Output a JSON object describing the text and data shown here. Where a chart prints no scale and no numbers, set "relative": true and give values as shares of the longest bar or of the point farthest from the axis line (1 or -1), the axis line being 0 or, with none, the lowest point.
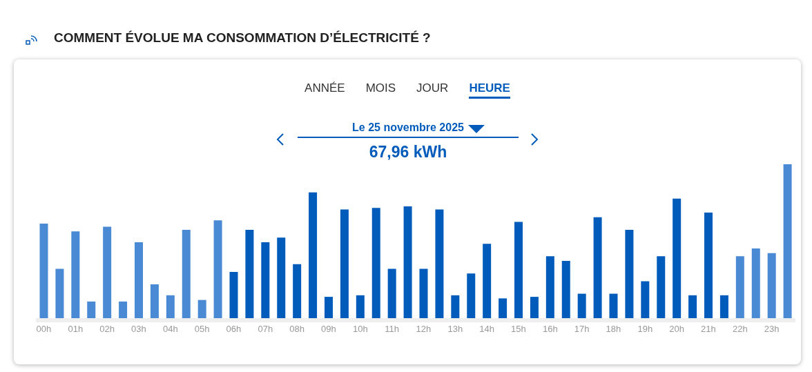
{
  "chart_data": {
    "type": "bar",
    "relative": true,
    "title": "COMMENT ÉVOLUE MA CONSOMMATION D’ÉLECTRICITÉ ?",
    "subtitle": "Le 25 novembre 2025",
    "annotations": [
      "ANNÉE",
      "MOIS",
      "JOUR",
      "HEURE",
      "67,96 kWh"
    ],
    "categories": [
      "00h",
      null,
      "01h",
      null,
      "02h",
      null,
      "03h",
      null,
      "04h",
      null,
      "05h",
      null,
      "06h",
      null,
      "07h",
      null,
      "08h",
      null,
      "09h",
      null,
      "10h",
      null,
      "11h",
      null,
      "12h",
      null,
      "13h",
      null,
      "14h",
      null,
      "15h",
      null,
      "16h",
      null,
      "17h",
      null,
      "18h",
      null,
      "19h",
      null,
      "20h",
      null,
      "21h",
      null,
      "22h",
      null,
      "23h",
      null
    ],
    "values": [
      0.62,
      0.33,
      0.57,
      0.12,
      0.6,
      0.12,
      0.5,
      0.23,
      0.16,
      0.58,
      0.13,
      0.64,
      0.31,
      0.58,
      0.5,
      0.53,
      0.36,
      0.82,
      0.15,
      0.71,
      0.16,
      0.72,
      0.33,
      0.73,
      0.33,
      0.71,
      0.16,
      0.3,
      0.49,
      0.14,
      0.63,
      0.15,
      0.41,
      0.38,
      0.17,
      0.66,
      0.17,
      0.58,
      0.25,
      0.41,
      0.78,
      0.16,
      0.69,
      0.16,
      0.41,
      0.46,
      0.43,
      1
    ],
    "colors": [
      "#4a89d4",
      "#4a89d4",
      "#4a89d4",
      "#4a89d4",
      "#4a89d4",
      "#4a89d4",
      "#4a89d4",
      "#4a89d4",
      "#4a89d4",
      "#4a89d4",
      "#4a89d4",
      "#4a89d4",
      "#005bbb",
      "#005bbb",
      "#005bbb",
      "#005bbb",
      "#005bbb",
      "#005bbb",
      "#005bbb",
      "#005bbb",
      "#005bbb",
      "#005bbb",
      "#005bbb",
      "#005bbb",
      "#005bbb",
      "#005bbb",
      "#005bbb",
      "#005bbb",
      "#005bbb",
      "#005bbb",
      "#005bbb",
      "#005bbb",
      "#005bbb",
      "#005bbb",
      "#005bbb",
      "#005bbb",
      "#005bbb",
      "#005bbb",
      "#005bbb",
      "#005bbb",
      "#005bbb",
      "#005bbb",
      "#005bbb",
      "#005bbb",
      "#4a89d4",
      "#4a89d4",
      "#4a89d4",
      "#4a89d4"
    ]
  }
}
